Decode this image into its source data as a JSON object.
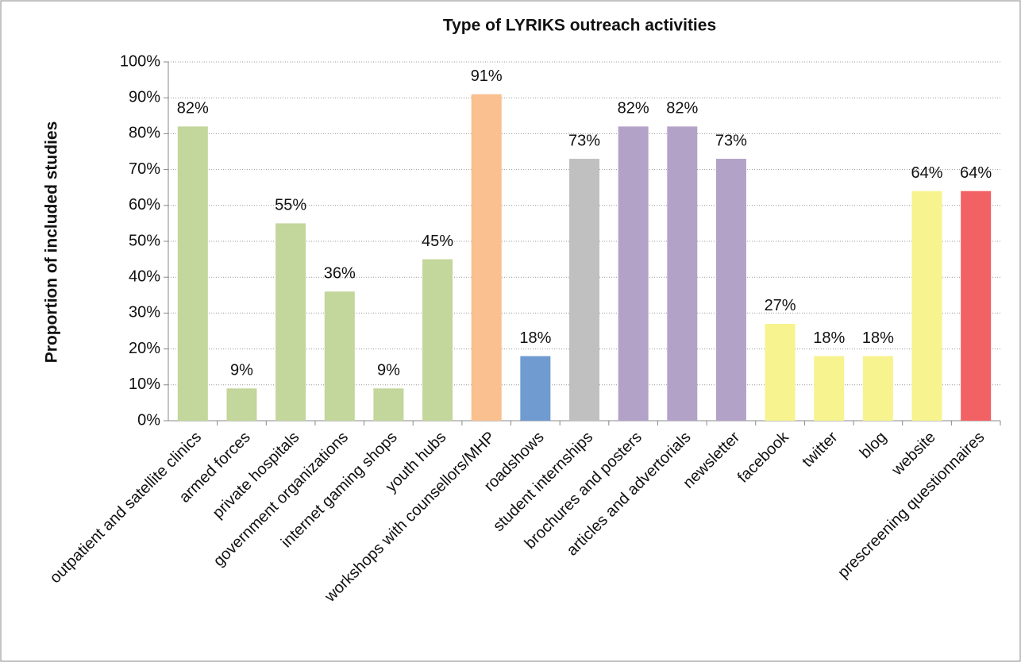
{
  "chart_data": {
    "type": "bar",
    "title": "Type of LYRIKS outreach activities",
    "y_label": "Proportion of included studies",
    "categories": [
      "outpatient and satellite clinics",
      "armed forces",
      "private hospitals",
      "government organizations",
      "internet gaming shops",
      "youth hubs",
      "workshops with counsellors/MHP",
      "roadshows",
      "student internships",
      "brochures and posters",
      "articles and advertorials",
      "newsletter",
      "facebook",
      "twitter",
      "blog",
      "website",
      "prescreening questionnaires"
    ],
    "values": [
      82,
      9,
      55,
      36,
      9,
      45,
      91,
      18,
      73,
      82,
      82,
      73,
      27,
      18,
      18,
      64,
      64
    ],
    "value_labels": [
      "82%",
      "9%",
      "55%",
      "36%",
      "9%",
      "45%",
      "91%",
      "18%",
      "73%",
      "82%",
      "82%",
      "73%",
      "27%",
      "18%",
      "18%",
      "64%",
      "64%"
    ],
    "colors": [
      "#c3d69b",
      "#c3d69b",
      "#c3d69b",
      "#c3d69b",
      "#c3d69b",
      "#c3d69b",
      "#fac090",
      "#6f9bd1",
      "#c0c0c0",
      "#b3a2c7",
      "#b3a2c7",
      "#b3a2c7",
      "#f7f38f",
      "#f7f38f",
      "#f7f38f",
      "#f7f38f",
      "#f26164"
    ],
    "ylim": [
      0,
      100
    ],
    "yticks": [
      {
        "value": 0,
        "label": "0%"
      },
      {
        "value": 10,
        "label": "10%"
      },
      {
        "value": 20,
        "label": "20%"
      },
      {
        "value": 30,
        "label": "30%"
      },
      {
        "value": 40,
        "label": "40%"
      },
      {
        "value": 50,
        "label": "50%"
      },
      {
        "value": 60,
        "label": "60%"
      },
      {
        "value": 70,
        "label": "70%"
      },
      {
        "value": 80,
        "label": "80%"
      },
      {
        "value": 90,
        "label": "90%"
      },
      {
        "value": 100,
        "label": "100%"
      }
    ],
    "grid": true
  }
}
